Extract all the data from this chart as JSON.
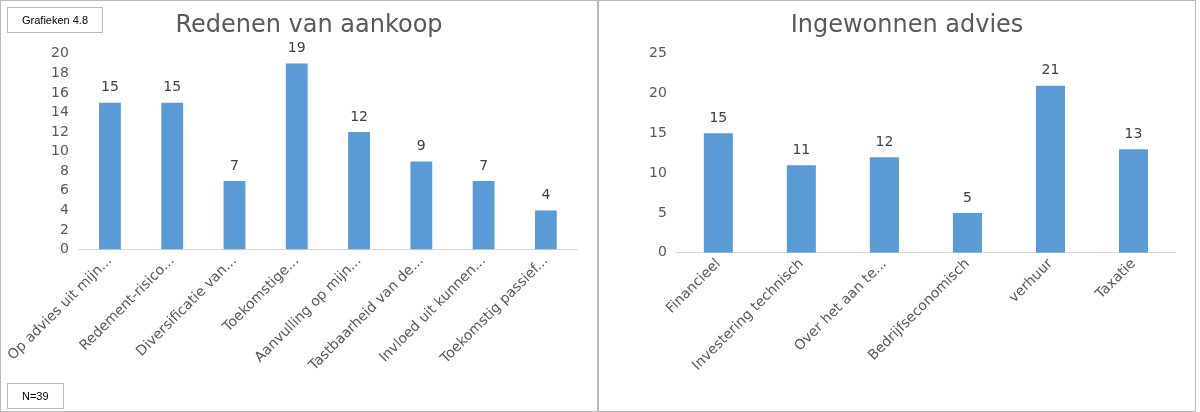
{
  "chart_data": [
    {
      "type": "bar",
      "title": "Redenen van aankoop",
      "categories": [
        "Op advies uit mijn...",
        "Redement-risico...",
        "Diversificatie van...",
        "Toekomstige...",
        "Aanvulling op mijn...",
        "Tastbaarheid van de...",
        "Invloed uit kunnen...",
        "Toekomstig passief..."
      ],
      "values": [
        15,
        15,
        7,
        19,
        12,
        9,
        7,
        4
      ],
      "color": "#5b9bd5",
      "ylim": [
        0,
        20
      ],
      "yticks": [
        0,
        2,
        4,
        6,
        8,
        10,
        12,
        14,
        16,
        18,
        20
      ],
      "grid": false,
      "legend": false,
      "data_labels": true,
      "annotations": [
        "Grafieken 4.8",
        "N=39"
      ]
    },
    {
      "type": "bar",
      "title": "Ingewonnen advies",
      "categories": [
        "Financieel",
        "Investering technisch",
        "Over het aan te...",
        "Bedrijfseconomisch",
        "verhuur",
        "Taxatie"
      ],
      "values": [
        15,
        11,
        12,
        5,
        21,
        13
      ],
      "color": "#5b9bd5",
      "ylim": [
        0,
        25
      ],
      "yticks": [
        0,
        5,
        10,
        15,
        20,
        25
      ],
      "grid": false,
      "legend": false,
      "data_labels": true
    }
  ]
}
